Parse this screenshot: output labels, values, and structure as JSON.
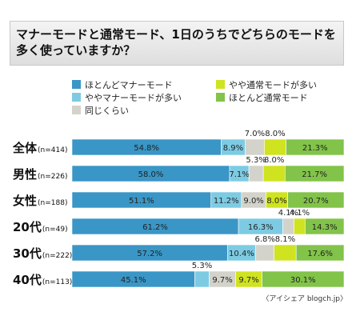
{
  "title": "マナーモードと通常モード、1日のうちでどちらのモードを多く使っていますか？",
  "source": "〈アイシェア blogch.jp〉",
  "colors": {
    "blue": "#3a96c6",
    "lightblue": "#7dcbe3",
    "gray": "#d3d3cb",
    "yellow": "#cfe320",
    "green": "#82c34a"
  },
  "legend": [
    {
      "label": "ほとんどマナーモード",
      "color": "#3a96c6"
    },
    {
      "label": "ややマナーモードが多い",
      "color": "#7dcbe3"
    },
    {
      "label": "同じくらい",
      "color": "#d3d3cb"
    },
    {
      "label": "やや通常モードが多い",
      "color": "#cfe320"
    },
    {
      "label": "ほとんど通常モード",
      "color": "#82c34a"
    }
  ],
  "chart_data": {
    "type": "bar",
    "orientation": "horizontal-stacked-100",
    "title": "マナーモードと通常モード、1日のうちでどちらのモードを多く使っていますか？",
    "categories": [
      {
        "name": "全体",
        "n": "(n=414)"
      },
      {
        "name": "男性",
        "n": "(n=226)"
      },
      {
        "name": "女性",
        "n": "(n=188)"
      },
      {
        "name": "20代",
        "n": "(n=49)"
      },
      {
        "name": "30代",
        "n": "(n=222)"
      },
      {
        "name": "40代",
        "n": "(n=113)"
      }
    ],
    "series": [
      {
        "name": "ほとんどマナーモード",
        "values": [
          54.8,
          58.0,
          51.1,
          61.2,
          57.2,
          45.1
        ]
      },
      {
        "name": "ややマナーモードが多い",
        "values": [
          8.9,
          7.1,
          11.2,
          16.3,
          10.4,
          5.3
        ]
      },
      {
        "name": "同じくらい",
        "values": [
          7.0,
          5.3,
          9.0,
          4.1,
          6.8,
          9.7
        ]
      },
      {
        "name": "やや通常モードが多い",
        "values": [
          8.0,
          8.0,
          8.0,
          4.1,
          8.1,
          9.7
        ]
      },
      {
        "name": "ほとんど通常モード",
        "values": [
          21.3,
          21.7,
          20.7,
          14.3,
          17.6,
          30.1
        ]
      }
    ],
    "labels": [
      [
        "54.8%",
        "8.9%",
        "7.0%",
        "8.0%",
        "21.3%"
      ],
      [
        "58.0%",
        "7.1%",
        "5.3%",
        "8.0%",
        "21.7%"
      ],
      [
        "51.1%",
        "11.2%",
        "9.0%",
        "8.0%",
        "20.7%"
      ],
      [
        "61.2%",
        "16.3%",
        "4.1%",
        "4.1%",
        "14.3%"
      ],
      [
        "57.2%",
        "10.4%",
        "6.8%",
        "8.1%",
        "17.6%"
      ],
      [
        "45.1%",
        "5.3%",
        "9.7%",
        "9.7%",
        "30.1%"
      ]
    ],
    "xlim": [
      0,
      100
    ],
    "grid": false,
    "legend_position": "top"
  }
}
